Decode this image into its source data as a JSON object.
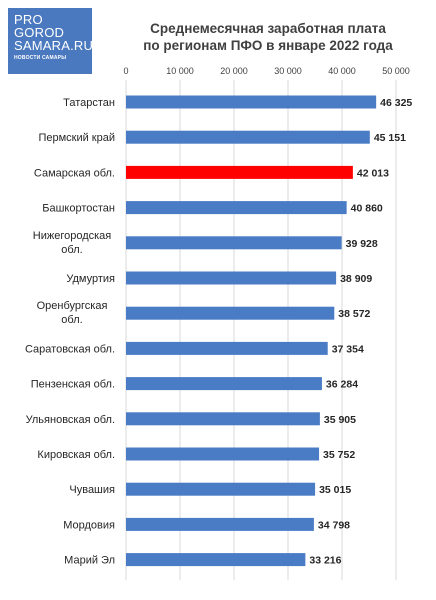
{
  "logo": {
    "line1": "PRO",
    "line2": "GOROD",
    "line3": "SAMARA.RU",
    "tagline": "НОВОСТИ САМАРЫ",
    "color": "#4a79bf"
  },
  "chart_data": {
    "type": "bar",
    "orientation": "horizontal",
    "title_line1": "Среднемесячная заработная плата",
    "title_line2": "по регионам ПФО в январе 2022 года",
    "categories": [
      "Татарстан",
      "Пермский край",
      "Самарская обл.",
      "Башкортостан",
      "Нижегородская обл.",
      "Удмуртия",
      "Оренбургская обл.",
      "Саратовская обл.",
      "Пензенская обл.",
      "Ульяновская обл.",
      "Кировская обл.",
      "Чувашия",
      "Мордовия",
      "Марий Эл"
    ],
    "values": [
      46325,
      45151,
      42013,
      40860,
      39928,
      38909,
      38572,
      37354,
      36284,
      35905,
      35752,
      35015,
      34798,
      33216
    ],
    "value_labels": [
      "46 325",
      "45 151",
      "42 013",
      "40 860",
      "39 928",
      "38 909",
      "38 572",
      "37 354",
      "36 284",
      "35 905",
      "35 752",
      "35 015",
      "34 798",
      "33 216"
    ],
    "xlim": [
      0,
      50000
    ],
    "x_ticks": [
      0,
      10000,
      20000,
      30000,
      40000,
      50000
    ],
    "x_tick_labels": [
      "0",
      "10 000",
      "20 000",
      "30 000",
      "40 000",
      "50 000"
    ],
    "axis_position": "top",
    "grid": true,
    "legend": "none",
    "bar_color": "#4a7cc6",
    "highlight_color": "#ff0000",
    "highlight_category": "Самарская обл."
  }
}
